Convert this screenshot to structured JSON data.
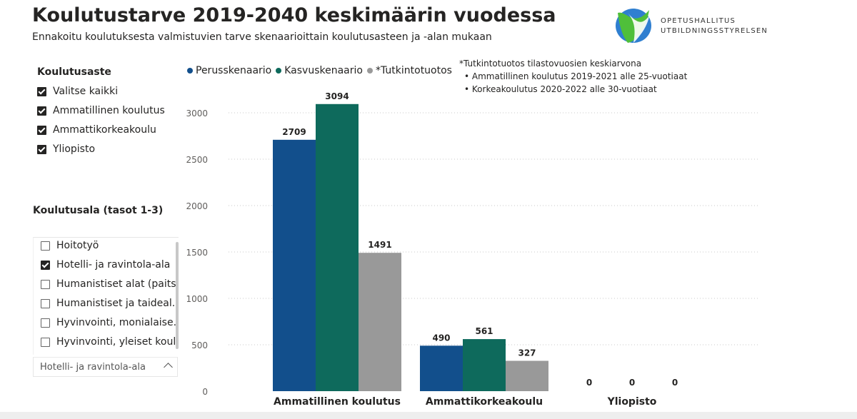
{
  "header": {
    "title": "Koulutustarve 2019-2040 keskimäärin vuodessa",
    "subtitle": "Ennakoitu koulutuksesta valmistuvien tarve skenaarioittain koulutusasteen ja -alan mukaan"
  },
  "logo": {
    "line1": "OPETUSHALLITUS",
    "line2": "UTBILDNINGSSTYRELSEN"
  },
  "slicer_level": {
    "title": "Koulutusaste",
    "items": [
      {
        "label": "Valitse kaikki",
        "checked": true
      },
      {
        "label": "Ammatillinen koulutus",
        "checked": true
      },
      {
        "label": "Ammattikorkeakoulu",
        "checked": true
      },
      {
        "label": "Yliopisto",
        "checked": true
      }
    ]
  },
  "slicer_field": {
    "title": "Koulutusala (tasot 1-3)",
    "items": [
      {
        "label": "Hoitotyö",
        "checked": false
      },
      {
        "label": "Hotelli- ja ravintola-ala",
        "checked": true
      },
      {
        "label": "Humanistiset alat (paits...",
        "checked": false
      },
      {
        "label": "Humanistiset ja taideal...",
        "checked": false
      },
      {
        "label": "Hyvinvointi, monialaise...",
        "checked": false
      },
      {
        "label": "Hyvinvointi, yleiset koul...",
        "checked": false
      }
    ],
    "selected_value": "Hotelli- ja ravintola-ala"
  },
  "note": {
    "header": "*Tutkintotuotos tilastovuosien keskiarvona",
    "lines": [
      "Ammatillinen koulutus 2019-2021 alle 25-vuotiaat",
      "Korkeakoulutus 2020-2022 alle 30-vuotiaat"
    ]
  },
  "chart_data": {
    "type": "bar",
    "categories": [
      "Ammatillinen koulutus",
      "Ammattikorkeakoulu",
      "Yliopisto"
    ],
    "series": [
      {
        "name": "Perusskenaario",
        "color": "#124f8c",
        "values": [
          2709,
          490,
          0
        ]
      },
      {
        "name": "Kasvuskenaario",
        "color": "#0e6a5c",
        "values": [
          3094,
          561,
          0
        ]
      },
      {
        "name": "*Tutkintotuotos",
        "color": "#999999",
        "values": [
          1491,
          327,
          0
        ]
      }
    ],
    "yticks": [
      0,
      500,
      1000,
      1500,
      2000,
      2500,
      3000
    ],
    "ylim": [
      0,
      3300
    ],
    "grid": true,
    "legend_position": "top-left"
  }
}
